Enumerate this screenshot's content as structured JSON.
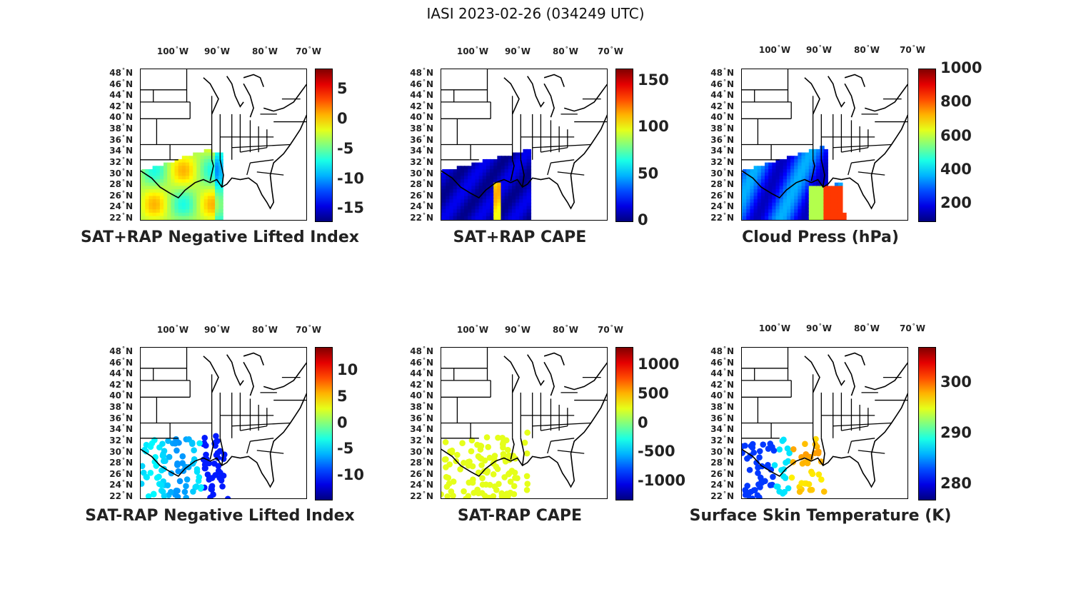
{
  "title": "IASI 2023-02-26 (034249 UTC)",
  "longitude_labels": [
    {
      "deg": "100",
      "hem": "W"
    },
    {
      "deg": "90",
      "hem": "W"
    },
    {
      "deg": "80",
      "hem": "W"
    },
    {
      "deg": "70",
      "hem": "W"
    }
  ],
  "latitude_labels": [
    "48",
    "46",
    "44",
    "42",
    "40",
    "38",
    "36",
    "34",
    "32",
    "30",
    "28",
    "26",
    "24",
    "22"
  ],
  "latitude_hem": "N",
  "panels": [
    {
      "title": "SAT+RAP Negative Lifted Index",
      "colorbar": {
        "min": -17,
        "max": 8.5,
        "ticks": [
          "5",
          "0",
          "-5",
          "-10",
          "-15"
        ],
        "tick_values": [
          5,
          0,
          -5,
          -10,
          -15
        ]
      },
      "overlay": "li"
    },
    {
      "title": "SAT+RAP CAPE",
      "colorbar": {
        "min": 0,
        "max": 163,
        "ticks": [
          "150",
          "100",
          "50",
          "0"
        ],
        "tick_values": [
          150,
          100,
          50,
          0
        ]
      },
      "overlay": "cape"
    },
    {
      "title": "Cloud Press (hPa)",
      "colorbar": {
        "min": 100,
        "max": 1000,
        "ticks": [
          "1000",
          "800",
          "600",
          "400",
          "200"
        ],
        "tick_values": [
          1000,
          800,
          600,
          400,
          200
        ]
      },
      "overlay": "cloud"
    },
    {
      "title": "SAT-RAP Negative Lifted Index",
      "colorbar": {
        "min": -14.5,
        "max": 14.5,
        "ticks": [
          "10",
          "5",
          "0",
          "-5",
          "-10"
        ],
        "tick_values": [
          10,
          5,
          0,
          -5,
          -10
        ]
      },
      "overlay": "dli"
    },
    {
      "title": "SAT-RAP CAPE",
      "colorbar": {
        "min": -1300,
        "max": 1300,
        "ticks": [
          "1000",
          "500",
          "0",
          "-500",
          "-1000"
        ],
        "tick_values": [
          1000,
          500,
          0,
          -500,
          -1000
        ]
      },
      "overlay": "dcape"
    },
    {
      "title": "Surface Skin Temperature (K)",
      "colorbar": {
        "min": 277,
        "max": 307,
        "ticks": [
          "300",
          "290",
          "280"
        ],
        "tick_values": [
          300,
          290,
          280
        ]
      },
      "overlay": "skin"
    }
  ],
  "colormap": "jet"
}
